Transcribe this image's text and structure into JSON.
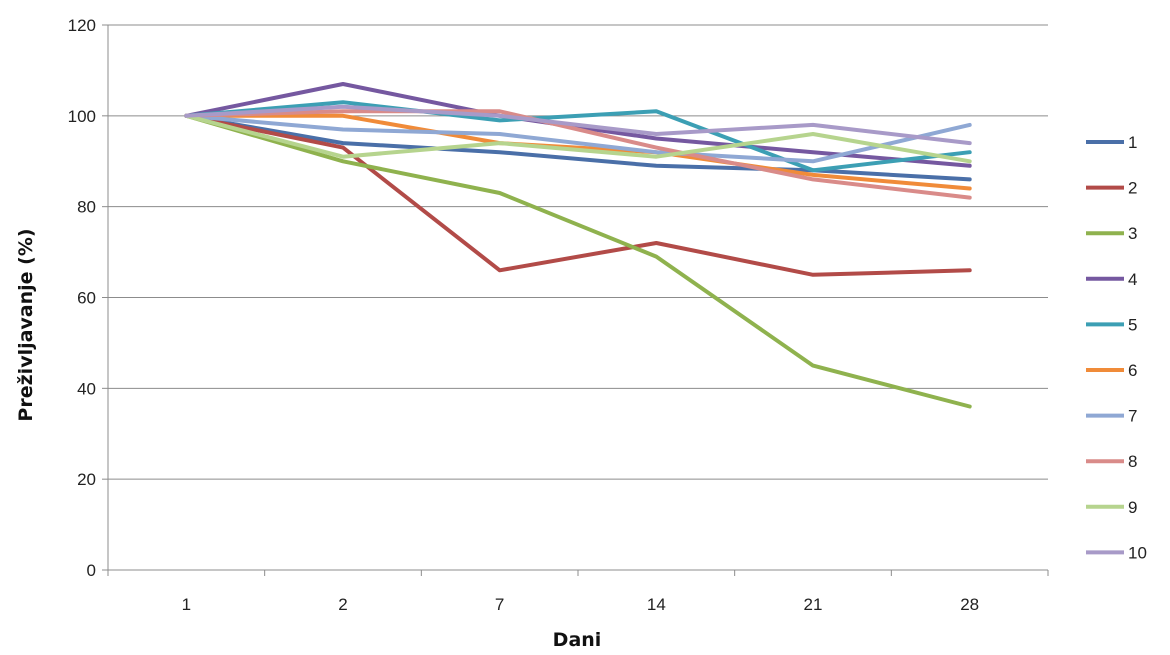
{
  "chart_data": {
    "type": "line",
    "categories": [
      "1",
      "2",
      "7",
      "14",
      "21",
      "28"
    ],
    "xlabel": "Dani",
    "ylabel": "Preživljavanje (%)",
    "ylim": [
      0,
      120
    ],
    "yticks": [
      0,
      20,
      40,
      60,
      80,
      100,
      120
    ],
    "grid": true,
    "legend_position": "right",
    "series": [
      {
        "name": "1",
        "color": "#4a6fa8",
        "values": [
          100,
          94,
          92,
          89,
          88,
          86
        ]
      },
      {
        "name": "2",
        "color": "#b24b48",
        "values": [
          100,
          93,
          66,
          72,
          65,
          66
        ]
      },
      {
        "name": "3",
        "color": "#8fb24e",
        "values": [
          100,
          90,
          83,
          69,
          45,
          36
        ]
      },
      {
        "name": "4",
        "color": "#7558a0",
        "values": [
          100,
          107,
          100,
          95,
          92,
          89
        ]
      },
      {
        "name": "5",
        "color": "#3c9fb4",
        "values": [
          100,
          103,
          99,
          101,
          88,
          92
        ]
      },
      {
        "name": "6",
        "color": "#f08b39",
        "values": [
          100,
          100,
          94,
          92,
          87,
          84
        ]
      },
      {
        "name": "7",
        "color": "#8fa8d4",
        "values": [
          100,
          97,
          96,
          92,
          90,
          98
        ]
      },
      {
        "name": "8",
        "color": "#d98b89",
        "values": [
          100,
          101,
          101,
          93,
          86,
          82
        ]
      },
      {
        "name": "9",
        "color": "#b6d48e",
        "values": [
          100,
          91,
          94,
          91,
          96,
          90
        ]
      },
      {
        "name": "10",
        "color": "#a89ac8",
        "values": [
          100,
          102,
          100,
          96,
          98,
          94
        ]
      }
    ]
  }
}
